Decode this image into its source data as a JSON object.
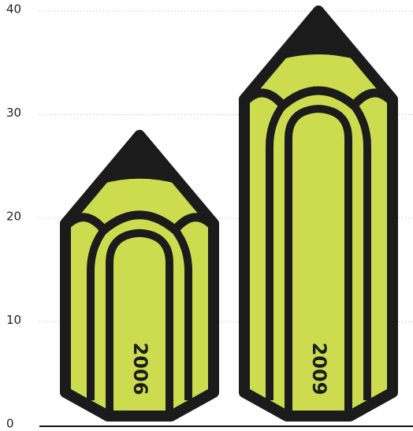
{
  "chart_data": {
    "type": "bar",
    "categories": [
      "2006",
      "2009"
    ],
    "values": [
      28,
      40
    ],
    "color": "#cddc4f",
    "ylim": [
      0,
      40
    ],
    "yticks": [
      0,
      10,
      20,
      30,
      40
    ],
    "grid": true
  }
}
